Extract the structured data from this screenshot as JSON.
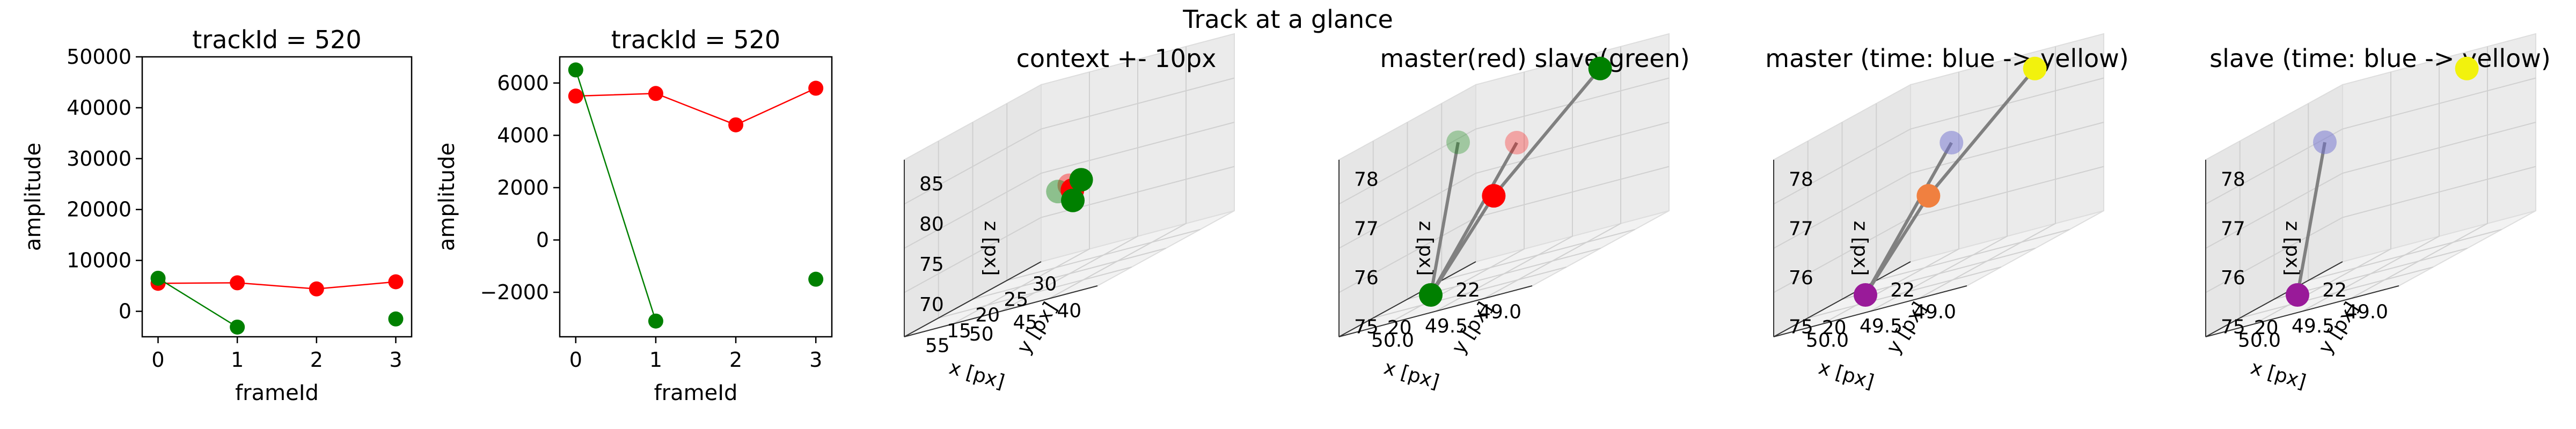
{
  "suptitle": "Track at a glance",
  "colors": {
    "master": "#ff0000",
    "slave": "#008000",
    "link": "#808080",
    "pane": "#f2f2f2",
    "pane_line": "#dddddd",
    "yellow": "#f2f20d",
    "purple": "#991a99",
    "blue": "#7070d0",
    "orange": "#f08040"
  },
  "chart_data": [
    {
      "type": "line",
      "title": "trackId = 520",
      "xlabel": "frameId",
      "ylabel": "amplitude",
      "xlim": [
        -0.2,
        3.2
      ],
      "ylim": [
        -5000,
        50000
      ],
      "xticks": [
        "0",
        "1",
        "2",
        "3"
      ],
      "yticks": [
        "0",
        "10000",
        "20000",
        "30000",
        "40000",
        "50000"
      ],
      "series": [
        {
          "color": "red",
          "x": [
            0,
            1,
            2,
            3
          ],
          "y": [
            5500,
            5600,
            4400,
            5800
          ],
          "connect": [
            0,
            1,
            2,
            3
          ]
        },
        {
          "color": "green",
          "x": [
            0,
            1,
            3
          ],
          "y": [
            6500,
            -3100,
            -1500
          ],
          "connect": [
            0,
            1
          ]
        }
      ]
    },
    {
      "type": "line",
      "title": "trackId = 520",
      "xlabel": "frameId",
      "ylabel": "amplitude",
      "xlim": [
        -0.2,
        3.2
      ],
      "ylim": [
        -3700,
        7000
      ],
      "xticks": [
        "0",
        "1",
        "2",
        "3"
      ],
      "yticks": [
        "−2000",
        "0",
        "2000",
        "4000",
        "6000"
      ],
      "series": [
        {
          "color": "red",
          "x": [
            0,
            1,
            2,
            3
          ],
          "y": [
            5500,
            5600,
            4400,
            5800
          ],
          "connect": [
            0,
            1,
            2,
            3
          ]
        },
        {
          "color": "green",
          "x": [
            0,
            1,
            3
          ],
          "y": [
            6500,
            -3100,
            -1500
          ],
          "connect": [
            0,
            1
          ]
        }
      ]
    },
    {
      "type": "scatter",
      "projection": "3d",
      "title": "context +- 10px",
      "xlabel": "x [px]",
      "ylabel": "y [px]",
      "zlabel": "z [px]",
      "xlim": [
        38,
        60
      ],
      "ylim": [
        10,
        34
      ],
      "zlim": [
        66,
        88
      ],
      "xticks": [
        "40",
        "45",
        "50",
        "55"
      ],
      "yticks": [
        "15",
        "20",
        "25",
        "30"
      ],
      "zticks": [
        "70",
        "75",
        "80",
        "85"
      ],
      "points": [
        {
          "x": 49,
          "y": 22,
          "z": 77,
          "color": "#ff0000",
          "alpha": 0.4
        },
        {
          "x": 49,
          "y": 20,
          "z": 77,
          "color": "#008000",
          "alpha": 0.4
        },
        {
          "x": 48,
          "y": 21,
          "z": 76.5,
          "color": "#ff0000"
        },
        {
          "x": 47,
          "y": 21,
          "z": 77.5,
          "color": "#008000"
        },
        {
          "x": 48.6,
          "y": 22,
          "z": 75,
          "color": "#008000"
        }
      ],
      "segments": []
    },
    {
      "type": "scatter",
      "projection": "3d",
      "title": "master(red) slave(green)",
      "xlabel": "x [px]",
      "ylabel": "y [px]",
      "zlabel": "z [px]",
      "xlim": [
        48.8,
        50.6
      ],
      "ylim": [
        19,
        23
      ],
      "zlim": [
        74.8,
        78.4
      ],
      "xticks": [
        "49.0",
        "49.5",
        "50.0"
      ],
      "yticks": [
        "20",
        "22"
      ],
      "zticks": [
        "75",
        "76",
        "77",
        "78"
      ],
      "points": [
        {
          "x": 49.9,
          "y": 22.0,
          "z": 77.2,
          "color": "#ff0000",
          "alpha": 0.3
        },
        {
          "x": 50.0,
          "y": 20.6,
          "z": 77.8,
          "color": "#008000",
          "alpha": 0.3
        },
        {
          "x": 49.7,
          "y": 20.7,
          "z": 76.5,
          "color": "#ff0000"
        },
        {
          "x": 48.9,
          "y": 21.3,
          "z": 78.4,
          "color": "#008000"
        },
        {
          "x": 50.0,
          "y": 19.8,
          "z": 75.0,
          "color": "#008000"
        }
      ],
      "segments": [
        [
          2,
          3
        ],
        [
          2,
          4
        ],
        [
          0,
          4
        ],
        [
          1,
          4
        ]
      ]
    },
    {
      "type": "scatter",
      "projection": "3d",
      "title": "master (time: blue -> yellow)",
      "xlabel": "x [px]",
      "ylabel": "y [px]",
      "zlabel": "z [px]",
      "xlim": [
        48.8,
        50.6
      ],
      "ylim": [
        19,
        23
      ],
      "zlim": [
        74.8,
        78.4
      ],
      "xticks": [
        "49.0",
        "49.5",
        "50.0"
      ],
      "yticks": [
        "20",
        "22"
      ],
      "zticks": [
        "75",
        "76",
        "77",
        "78"
      ],
      "points": [
        {
          "x": 49.9,
          "y": 22.0,
          "z": 77.2,
          "color": "#7070d0",
          "alpha": 0.5
        },
        {
          "x": 49.7,
          "y": 20.7,
          "z": 76.5,
          "color": "#f08040"
        },
        {
          "x": 48.9,
          "y": 21.3,
          "z": 78.4,
          "color": "#f2f20d"
        },
        {
          "x": 50.0,
          "y": 19.8,
          "z": 75.0,
          "color": "#991a99"
        }
      ],
      "segments": [
        [
          1,
          2
        ],
        [
          1,
          3
        ],
        [
          0,
          3
        ]
      ]
    },
    {
      "type": "scatter",
      "projection": "3d",
      "title": "slave (time: blue -> yellow)",
      "xlabel": "x [px]",
      "ylabel": "y [px]",
      "zlabel": "z [px]",
      "xlim": [
        48.8,
        50.6
      ],
      "ylim": [
        19,
        23
      ],
      "zlim": [
        74.8,
        78.4
      ],
      "xticks": [
        "49.0",
        "49.5",
        "50.0"
      ],
      "yticks": [
        "20",
        "22"
      ],
      "zticks": [
        "75",
        "76",
        "77",
        "78"
      ],
      "points": [
        {
          "x": 50.0,
          "y": 20.6,
          "z": 77.8,
          "color": "#7070d0",
          "alpha": 0.5
        },
        {
          "x": 48.9,
          "y": 21.3,
          "z": 78.4,
          "color": "#f2f20d"
        },
        {
          "x": 50.0,
          "y": 19.8,
          "z": 75.0,
          "color": "#991a99"
        }
      ],
      "segments": [
        [
          0,
          2
        ]
      ]
    }
  ]
}
